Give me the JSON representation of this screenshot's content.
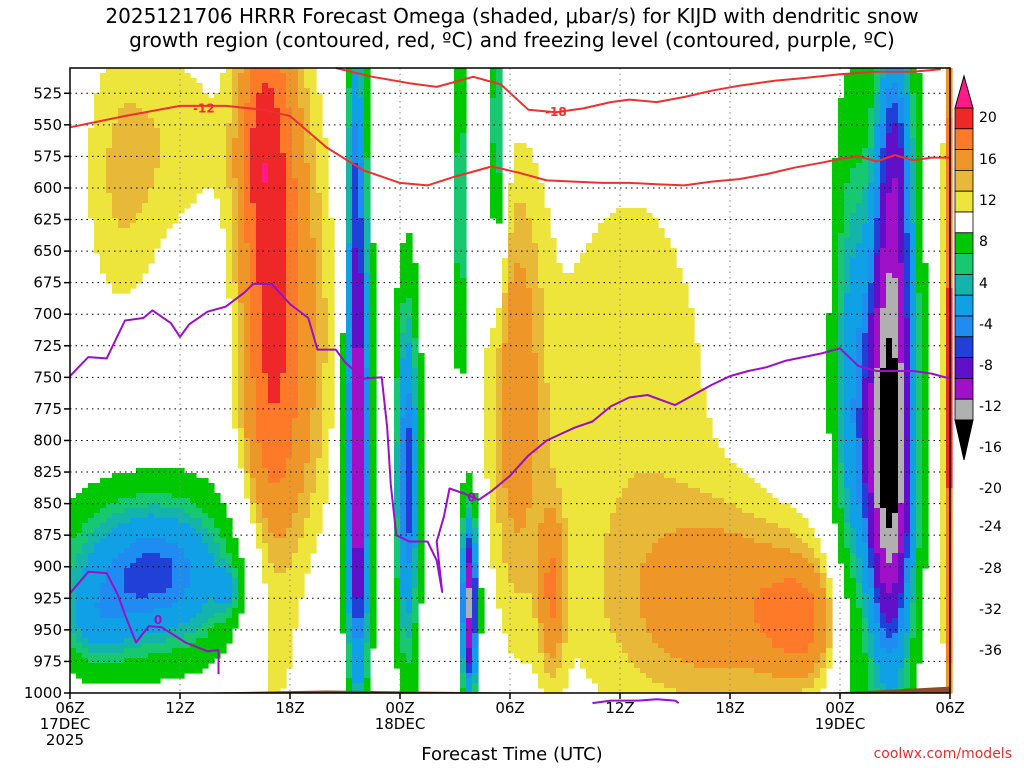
{
  "chart_data": {
    "type": "heatmap",
    "title_line1": "2025121706 HRRR Forecast Omega (shaded, μbar/s) for KIJD with dendritic snow",
    "title_line2": "growth region (contoured, red, ºC) and freezing level (contoured, purple, ºC)",
    "xlabel": "Forecast Time (UTC)",
    "ylabel": "",
    "x_hours_range": [
      0,
      48
    ],
    "y_pressure_range": [
      1000,
      505
    ],
    "y_ticks": [
      525,
      550,
      575,
      600,
      625,
      650,
      675,
      700,
      725,
      750,
      775,
      800,
      825,
      850,
      875,
      900,
      925,
      950,
      975,
      1000
    ],
    "x_ticks": [
      {
        "hour": 0,
        "lines": [
          "06Z",
          "17DEC",
          "2025"
        ]
      },
      {
        "hour": 6,
        "lines": [
          "12Z"
        ]
      },
      {
        "hour": 12,
        "lines": [
          "18Z"
        ]
      },
      {
        "hour": 18,
        "lines": [
          "00Z",
          "18DEC"
        ]
      },
      {
        "hour": 24,
        "lines": [
          "06Z"
        ]
      },
      {
        "hour": 30,
        "lines": [
          "12Z"
        ]
      },
      {
        "hour": 36,
        "lines": [
          "18Z"
        ]
      },
      {
        "hour": 42,
        "lines": [
          "00Z",
          "19DEC"
        ]
      },
      {
        "hour": 48,
        "lines": [
          "06Z"
        ]
      }
    ],
    "colorbar": {
      "labels": [
        20,
        16,
        12,
        8,
        4,
        -4,
        -8,
        -12,
        -16,
        -20,
        -24,
        -28,
        -32,
        -36
      ],
      "colors": [
        "#ff1a8a",
        "#ee2828",
        "#ff7a28",
        "#ee9628",
        "#e8b838",
        "#ede43c",
        "#ffffff",
        "#00c800",
        "#18c870",
        "#14b4aa",
        "#0fa0e6",
        "#1e8cf0",
        "#2040d8",
        "#6010c8",
        "#a010c8",
        "#b0b0b0",
        "#000000"
      ]
    },
    "omega_fields": [
      {
        "name": "upward-motion-lower-left",
        "h": 4.5,
        "p": 905,
        "sh": 3.6,
        "sp": 48,
        "amp": -19
      },
      {
        "name": "upward-motion-lower-left-core",
        "h": 8.7,
        "p": 918,
        "sh": 0.5,
        "sp": 14,
        "amp": -6
      },
      {
        "name": "upward-motion-lower-left-west",
        "h": 1.2,
        "p": 950,
        "sh": 1.4,
        "sp": 26,
        "amp": -6
      },
      {
        "name": "sinking-motion-18z-column",
        "h": 11.0,
        "p": 690,
        "sh": 1.3,
        "sp": 190,
        "amp": 17
      },
      {
        "name": "sinking-motion-18z-top",
        "h": 10.4,
        "p": 560,
        "sh": 0.9,
        "sp": 60,
        "amp": 6
      },
      {
        "name": "sinking-motion-early-upper",
        "h": 2.7,
        "p": 590,
        "sh": 1.8,
        "sp": 100,
        "amp": 6
      },
      {
        "name": "sinking-motion-mid-upper",
        "h": 6.5,
        "p": 560,
        "sh": 2.0,
        "sp": 70,
        "amp": 4.5
      },
      {
        "name": "sinking-motion-midmorning",
        "h": 13.5,
        "p": 720,
        "sh": 1.2,
        "sp": 160,
        "amp": 5
      },
      {
        "name": "upward-motion-21z-column",
        "h": 15.7,
        "p": 810,
        "sh": 0.5,
        "sp": 140,
        "amp": -30
      },
      {
        "name": "upward-motion-21z-top",
        "h": 15.6,
        "p": 560,
        "sh": 0.4,
        "sp": 80,
        "amp": -12
      },
      {
        "name": "upward-motion-00z-column",
        "h": 18.4,
        "p": 830,
        "sh": 0.5,
        "sp": 110,
        "amp": -20
      },
      {
        "name": "upward-motion-04z-column",
        "h": 21.8,
        "p": 930,
        "sh": 0.35,
        "sp": 55,
        "amp": -30
      },
      {
        "name": "upward-motion-04z-upper",
        "h": 21.3,
        "p": 620,
        "sh": 0.35,
        "sp": 110,
        "amp": -11
      },
      {
        "name": "upward-motion-05z-top",
        "h": 23.3,
        "p": 560,
        "sh": 0.35,
        "sp": 80,
        "amp": -13
      },
      {
        "name": "sinking-motion-06z-column",
        "h": 24.3,
        "p": 760,
        "sh": 1.1,
        "sp": 130,
        "amp": 8
      },
      {
        "name": "sinking-motion-08z-column",
        "h": 26.3,
        "p": 920,
        "sh": 0.5,
        "sp": 45,
        "amp": 9
      },
      {
        "name": "sinking-motion-broad-midday",
        "h": 30.5,
        "p": 790,
        "sh": 5.0,
        "sp": 220,
        "amp": 5.5
      },
      {
        "name": "sinking-motion-afternoon-low",
        "h": 36.5,
        "p": 930,
        "sh": 4.0,
        "sp": 55,
        "amp": 9
      },
      {
        "name": "sinking-motion-evening-low",
        "h": 40.0,
        "p": 945,
        "sh": 1.5,
        "sp": 35,
        "amp": 8
      },
      {
        "name": "upward-motion-00z19-column",
        "h": 42.5,
        "p": 760,
        "sh": 0.8,
        "sp": 170,
        "amp": -12
      },
      {
        "name": "upward-motion-03z19-column",
        "h": 44.7,
        "p": 810,
        "sh": 1.0,
        "sp": 130,
        "amp": -36
      },
      {
        "name": "upward-motion-03z19-upper",
        "h": 45.0,
        "p": 570,
        "sh": 0.8,
        "sp": 90,
        "amp": -16
      },
      {
        "name": "sinking-motion-06z19-edge",
        "h": 48.2,
        "p": 760,
        "sh": 0.35,
        "sp": 260,
        "amp": 22
      }
    ],
    "dgz_contours": [
      {
        "name": "dgz-minus12-upper",
        "label": "-12",
        "label_at": [
          7.3,
          537
        ],
        "points": [
          [
            0,
            552
          ],
          [
            3,
            543
          ],
          [
            6,
            535
          ],
          [
            8.5,
            535
          ],
          [
            10.5,
            538
          ],
          [
            12,
            543
          ],
          [
            14,
            568
          ],
          [
            16,
            586
          ],
          [
            18,
            596
          ],
          [
            19.5,
            598
          ],
          [
            21,
            591
          ],
          [
            23,
            583
          ],
          [
            24.5,
            588
          ],
          [
            26,
            594
          ],
          [
            27.5,
            595
          ],
          [
            29,
            596
          ],
          [
            30.5,
            596
          ],
          [
            32,
            597
          ],
          [
            33.5,
            598
          ],
          [
            35,
            595
          ],
          [
            36.5,
            593
          ],
          [
            38,
            589
          ],
          [
            39.5,
            584
          ],
          [
            41,
            580
          ],
          [
            42,
            577
          ],
          [
            43,
            575
          ],
          [
            44,
            579
          ],
          [
            45,
            574
          ],
          [
            46,
            578
          ],
          [
            47,
            576
          ],
          [
            48,
            576
          ]
        ]
      },
      {
        "name": "dgz-minus18",
        "label": "-18",
        "label_at": [
          26.5,
          540
        ],
        "points": [
          [
            14.5,
            505
          ],
          [
            16.5,
            512
          ],
          [
            18.5,
            517
          ],
          [
            20,
            520
          ],
          [
            22,
            512
          ],
          [
            23.5,
            518
          ],
          [
            25,
            538
          ],
          [
            26.5,
            540
          ],
          [
            28,
            537
          ],
          [
            29.5,
            532
          ],
          [
            30.5,
            530
          ],
          [
            32,
            532
          ],
          [
            33.5,
            528
          ],
          [
            35,
            523
          ],
          [
            36.5,
            519
          ],
          [
            38.5,
            515
          ],
          [
            40,
            513
          ],
          [
            42,
            510
          ],
          [
            44,
            508
          ],
          [
            46,
            508
          ],
          [
            47.5,
            506
          ]
        ]
      }
    ],
    "freezing_level": [
      {
        "name": "freezing-level-upper",
        "label": "0",
        "label_at": [
          21.9,
          845
        ],
        "points": [
          [
            0,
            749
          ],
          [
            1,
            734
          ],
          [
            2,
            735
          ],
          [
            2.5,
            720
          ],
          [
            3,
            705
          ],
          [
            4,
            703
          ],
          [
            4.5,
            697
          ],
          [
            5.5,
            707
          ],
          [
            6,
            718
          ],
          [
            6.5,
            708
          ],
          [
            7.5,
            698
          ],
          [
            8.5,
            694
          ],
          [
            9.5,
            683
          ],
          [
            10,
            676
          ],
          [
            11,
            676
          ],
          [
            12,
            692
          ],
          [
            13,
            703
          ],
          [
            13.5,
            728
          ],
          [
            14.5,
            728
          ],
          [
            15,
            738
          ],
          [
            16,
            751
          ],
          [
            17,
            750
          ],
          [
            17.3,
            790
          ],
          [
            17.5,
            835
          ],
          [
            17.8,
            875
          ],
          [
            18.5,
            880
          ],
          [
            19.5,
            880
          ],
          [
            20,
            895
          ],
          [
            20.3,
            920
          ],
          [
            20,
            880
          ],
          [
            20.4,
            860
          ],
          [
            20.7,
            838
          ],
          [
            21.5,
            842
          ],
          [
            22.3,
            847
          ],
          [
            23,
            840
          ],
          [
            24,
            828
          ],
          [
            25,
            812
          ],
          [
            26,
            800
          ],
          [
            27.5,
            790
          ],
          [
            28.5,
            785
          ],
          [
            29.5,
            773
          ],
          [
            30.5,
            766
          ],
          [
            31.5,
            764
          ],
          [
            33,
            772
          ],
          [
            34,
            764
          ],
          [
            35,
            756
          ],
          [
            36,
            749
          ],
          [
            37,
            745
          ],
          [
            38,
            742
          ],
          [
            39,
            737
          ],
          [
            40,
            734
          ],
          [
            41,
            731
          ],
          [
            42,
            727
          ],
          [
            43,
            741
          ],
          [
            44,
            745
          ],
          [
            45,
            745
          ],
          [
            46,
            745
          ],
          [
            47,
            747
          ],
          [
            48,
            751
          ]
        ]
      },
      {
        "name": "freezing-level-lower",
        "label": "0",
        "label_at": [
          4.8,
          942
        ],
        "points": [
          [
            0,
            921
          ],
          [
            1,
            904
          ],
          [
            2,
            905
          ],
          [
            2.6,
            922
          ],
          [
            3,
            938
          ],
          [
            3.6,
            960
          ],
          [
            4.3,
            947
          ],
          [
            5,
            948
          ],
          [
            6.3,
            960
          ],
          [
            7.5,
            967
          ],
          [
            8.1,
            966
          ],
          [
            8.1,
            985
          ]
        ]
      },
      {
        "name": "freezing-level-bottom",
        "label": "",
        "label_at": [
          0,
          0
        ],
        "points": [
          [
            28.5,
            1008
          ],
          [
            29.5,
            1006
          ],
          [
            31,
            1006
          ],
          [
            32,
            1005
          ],
          [
            33,
            1006
          ],
          [
            33.2,
            1008
          ]
        ]
      }
    ],
    "terrain": {
      "name": "ground-level",
      "points": [
        [
          0,
          1000
        ],
        [
          6,
          1002
        ],
        [
          14,
          998
        ],
        [
          20,
          999
        ],
        [
          28,
          1004
        ],
        [
          36,
          1004
        ],
        [
          41,
          1002
        ],
        [
          44,
          998
        ],
        [
          48,
          995
        ]
      ]
    }
  },
  "footer": {
    "site": "coolwx.com/models"
  }
}
